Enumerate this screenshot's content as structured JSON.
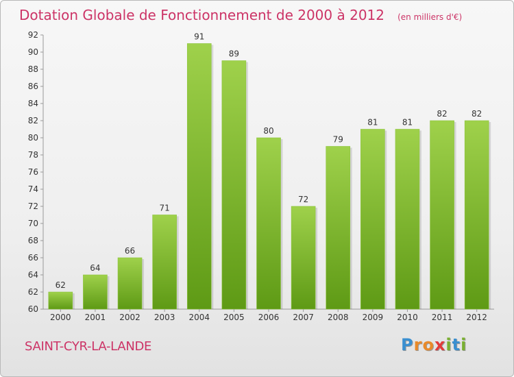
{
  "title": "Dotation Globale de Fonctionnement de 2000 à 2012",
  "subtitle": "(en milliers d'€)",
  "commune": "SAINT-CYR-LA-LANDE",
  "brand": {
    "letters": [
      "P",
      "r",
      "o",
      "x",
      "i",
      "t",
      "i"
    ],
    "colors": [
      "#3a8fd0",
      "#e98a2a",
      "#e98a2a",
      "#e23b3b",
      "#7ab030",
      "#3a8fd0",
      "#7ab030"
    ]
  },
  "colors": {
    "title": "#cc3366",
    "bar_top": "#9fd14b",
    "bar_bottom": "#5e9a15"
  },
  "chart_data": {
    "type": "bar",
    "categories": [
      "2000",
      "2001",
      "2002",
      "2003",
      "2004",
      "2005",
      "2006",
      "2007",
      "2008",
      "2009",
      "2010",
      "2011",
      "2012"
    ],
    "values": [
      62,
      64,
      66,
      71,
      91,
      89,
      80,
      72,
      79,
      81,
      81,
      82,
      82
    ],
    "ylim": [
      60,
      92
    ],
    "ytick_step": 2,
    "grid": false,
    "data_labels": true
  }
}
